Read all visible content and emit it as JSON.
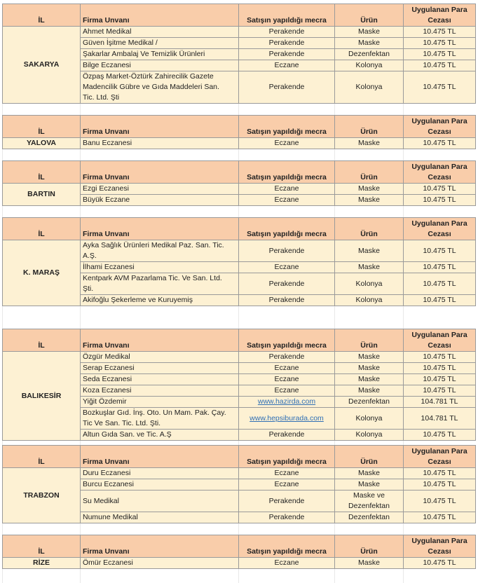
{
  "headers": {
    "il": "İL",
    "firma": "Firma Unvanı",
    "mecra": "Satışın yapıldığı mecra",
    "urun": "Ürün",
    "ceza": "Uygulanan Para\nCezası"
  },
  "colors": {
    "header_bg": "#f9cdaa",
    "row_bg": "#fdf1d3",
    "link": "#2f6fb5"
  },
  "blocks": [
    {
      "il": "SAKARYA",
      "rows": [
        {
          "firma": "Ahmet Medikal",
          "mecra": "Perakende",
          "urun": "Maske",
          "ceza": "10.475 TL"
        },
        {
          "firma": "Güven İşitme Medikal /",
          "mecra": "Perakende",
          "urun": "Maske",
          "ceza": "10.475 TL"
        },
        {
          "firma": "Şakarlar Ambalaj Ve Temizlik Ürünleri",
          "mecra": "Perakende",
          "urun": "Dezenfektan",
          "ceza": "10.475 TL"
        },
        {
          "firma": "Bilge Eczanesi",
          "mecra": "Eczane",
          "urun": "Kolonya",
          "ceza": "10.475 TL"
        },
        {
          "firma": "Özpaş Market-Öztürk Zahirecilik Gazete\nMadencilik Gübre ve Gıda Maddeleri San.\nTic. Ltd. Şti",
          "mecra": "Perakende",
          "urun": "Kolonya",
          "ceza": "10.475 TL"
        }
      ]
    },
    {
      "il": "YALOVA",
      "rows": [
        {
          "firma": "Banu Eczanesi",
          "mecra": "Eczane",
          "urun": "Maske",
          "ceza": "10.475 TL"
        }
      ]
    },
    {
      "il": "BARTIN",
      "rows": [
        {
          "firma": "Ezgi Eczanesi",
          "mecra": "Eczane",
          "urun": "Maske",
          "ceza": "10.475 TL"
        },
        {
          "firma": "Büyük Eczane",
          "mecra": "Eczane",
          "urun": "Maske",
          "ceza": "10.475 TL"
        }
      ]
    },
    {
      "il": "K. MARAŞ",
      "rows": [
        {
          "firma": "Ayka Sağlık Ürünleri Medikal Paz. San. Tic.\nA.Ş.",
          "mecra": "Perakende",
          "urun": "Maske",
          "ceza": "10.475 TL"
        },
        {
          "firma": "İlhami Eczanesi",
          "mecra": "Eczane",
          "urun": "Maske",
          "ceza": "10.475 TL"
        },
        {
          "firma": "Kentpark AVM Pazarlama Tic. Ve San. Ltd.\nŞti.",
          "mecra": "Perakende",
          "urun": "Kolonya",
          "ceza": "10.475 TL"
        },
        {
          "firma": "Akifoğlu Şekerleme ve Kuruyemiş",
          "mecra": "Perakende",
          "urun": "Kolonya",
          "ceza": "10.475 TL"
        }
      ]
    },
    {
      "il": "BALIKESİR",
      "rows": [
        {
          "firma": "Özgür Medikal",
          "mecra": "Perakende",
          "urun": "Maske",
          "ceza": "10.475 TL"
        },
        {
          "firma": "Serap Eczanesi",
          "mecra": "Eczane",
          "urun": "Maske",
          "ceza": "10.475 TL"
        },
        {
          "firma": "Seda Eczanesi",
          "mecra": "Eczane",
          "urun": "Maske",
          "ceza": "10.475 TL"
        },
        {
          "firma": "Koza Eczanesi",
          "mecra": "Eczane",
          "urun": "Maske",
          "ceza": "10.475 TL"
        },
        {
          "firma": "Yiğit Özdemir",
          "mecra": "www.hazirda.com",
          "link": true,
          "urun": "Dezenfektan",
          "ceza": "104.781 TL"
        },
        {
          "firma": "Bozkuşlar Gıd. İnş. Oto. Un Mam. Pak. Çay.\nTic Ve San. Tic. Ltd. Şti.",
          "mecra": "www.hepsiburada.com",
          "link": true,
          "urun": "Kolonya",
          "ceza": "104.781 TL"
        },
        {
          "firma": "Altun Gıda San. ve Tic. A.Ş",
          "mecra": "Perakende",
          "urun": "Kolonya",
          "ceza": "10.475 TL"
        }
      ]
    },
    {
      "il": "TRABZON",
      "rows": [
        {
          "firma": "Duru Eczanesi",
          "mecra": "Eczane",
          "urun": "Maske",
          "ceza": "10.475 TL"
        },
        {
          "firma": "Burcu Eczanesi",
          "mecra": "Eczane",
          "urun": "Maske",
          "ceza": "10.475 TL"
        },
        {
          "firma": "Su Medikal",
          "mecra": "Perakende",
          "urun": "Maske ve\nDezenfektan",
          "ceza": "10.475 TL"
        },
        {
          "firma": "Numune Medikal",
          "mecra": "Perakende",
          "urun": "Dezenfektan",
          "ceza": "10.475 TL"
        }
      ]
    },
    {
      "il": "RİZE",
      "rows": [
        {
          "firma": "Ömür Eczanesi",
          "mecra": "Eczane",
          "urun": "Maske",
          "ceza": "10.475 TL"
        }
      ]
    }
  ]
}
